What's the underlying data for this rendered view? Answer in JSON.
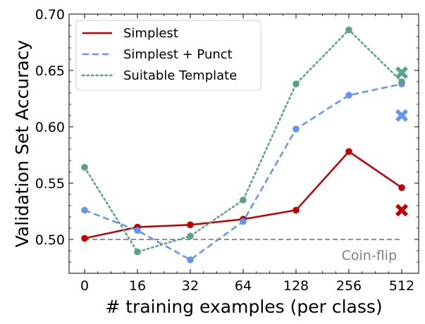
{
  "chart_data": {
    "type": "line",
    "title": "",
    "xlabel": "# training examples (per class)",
    "ylabel": "Validation Set Accuracy",
    "categories": [
      "0",
      "16",
      "32",
      "64",
      "128",
      "256",
      "512"
    ],
    "ylim": [
      0.47,
      0.7
    ],
    "yticks": [
      "0.50",
      "0.55",
      "0.60",
      "0.65",
      "0.70"
    ],
    "grid": false,
    "legend_position": "top-left",
    "series": [
      {
        "name": "Simplest",
        "color": "#c00000",
        "style": "solid",
        "values": [
          0.501,
          0.511,
          0.513,
          0.518,
          0.526,
          0.578,
          0.546
        ],
        "x_marker": 0.526
      },
      {
        "name": "Simplest + Punct",
        "color": "#6495ed",
        "style": "dashed",
        "values": [
          0.526,
          0.508,
          0.482,
          0.516,
          0.598,
          0.628,
          0.638
        ],
        "x_marker": 0.61
      },
      {
        "name": "Suitable Template",
        "color": "#5aa08c",
        "style": "dotted",
        "values": [
          0.564,
          0.489,
          0.503,
          0.535,
          0.638,
          0.686,
          0.64
        ],
        "x_marker": 0.648
      }
    ],
    "baseline": {
      "label": "Coin-flip",
      "value": 0.5,
      "color": "#808080"
    }
  }
}
